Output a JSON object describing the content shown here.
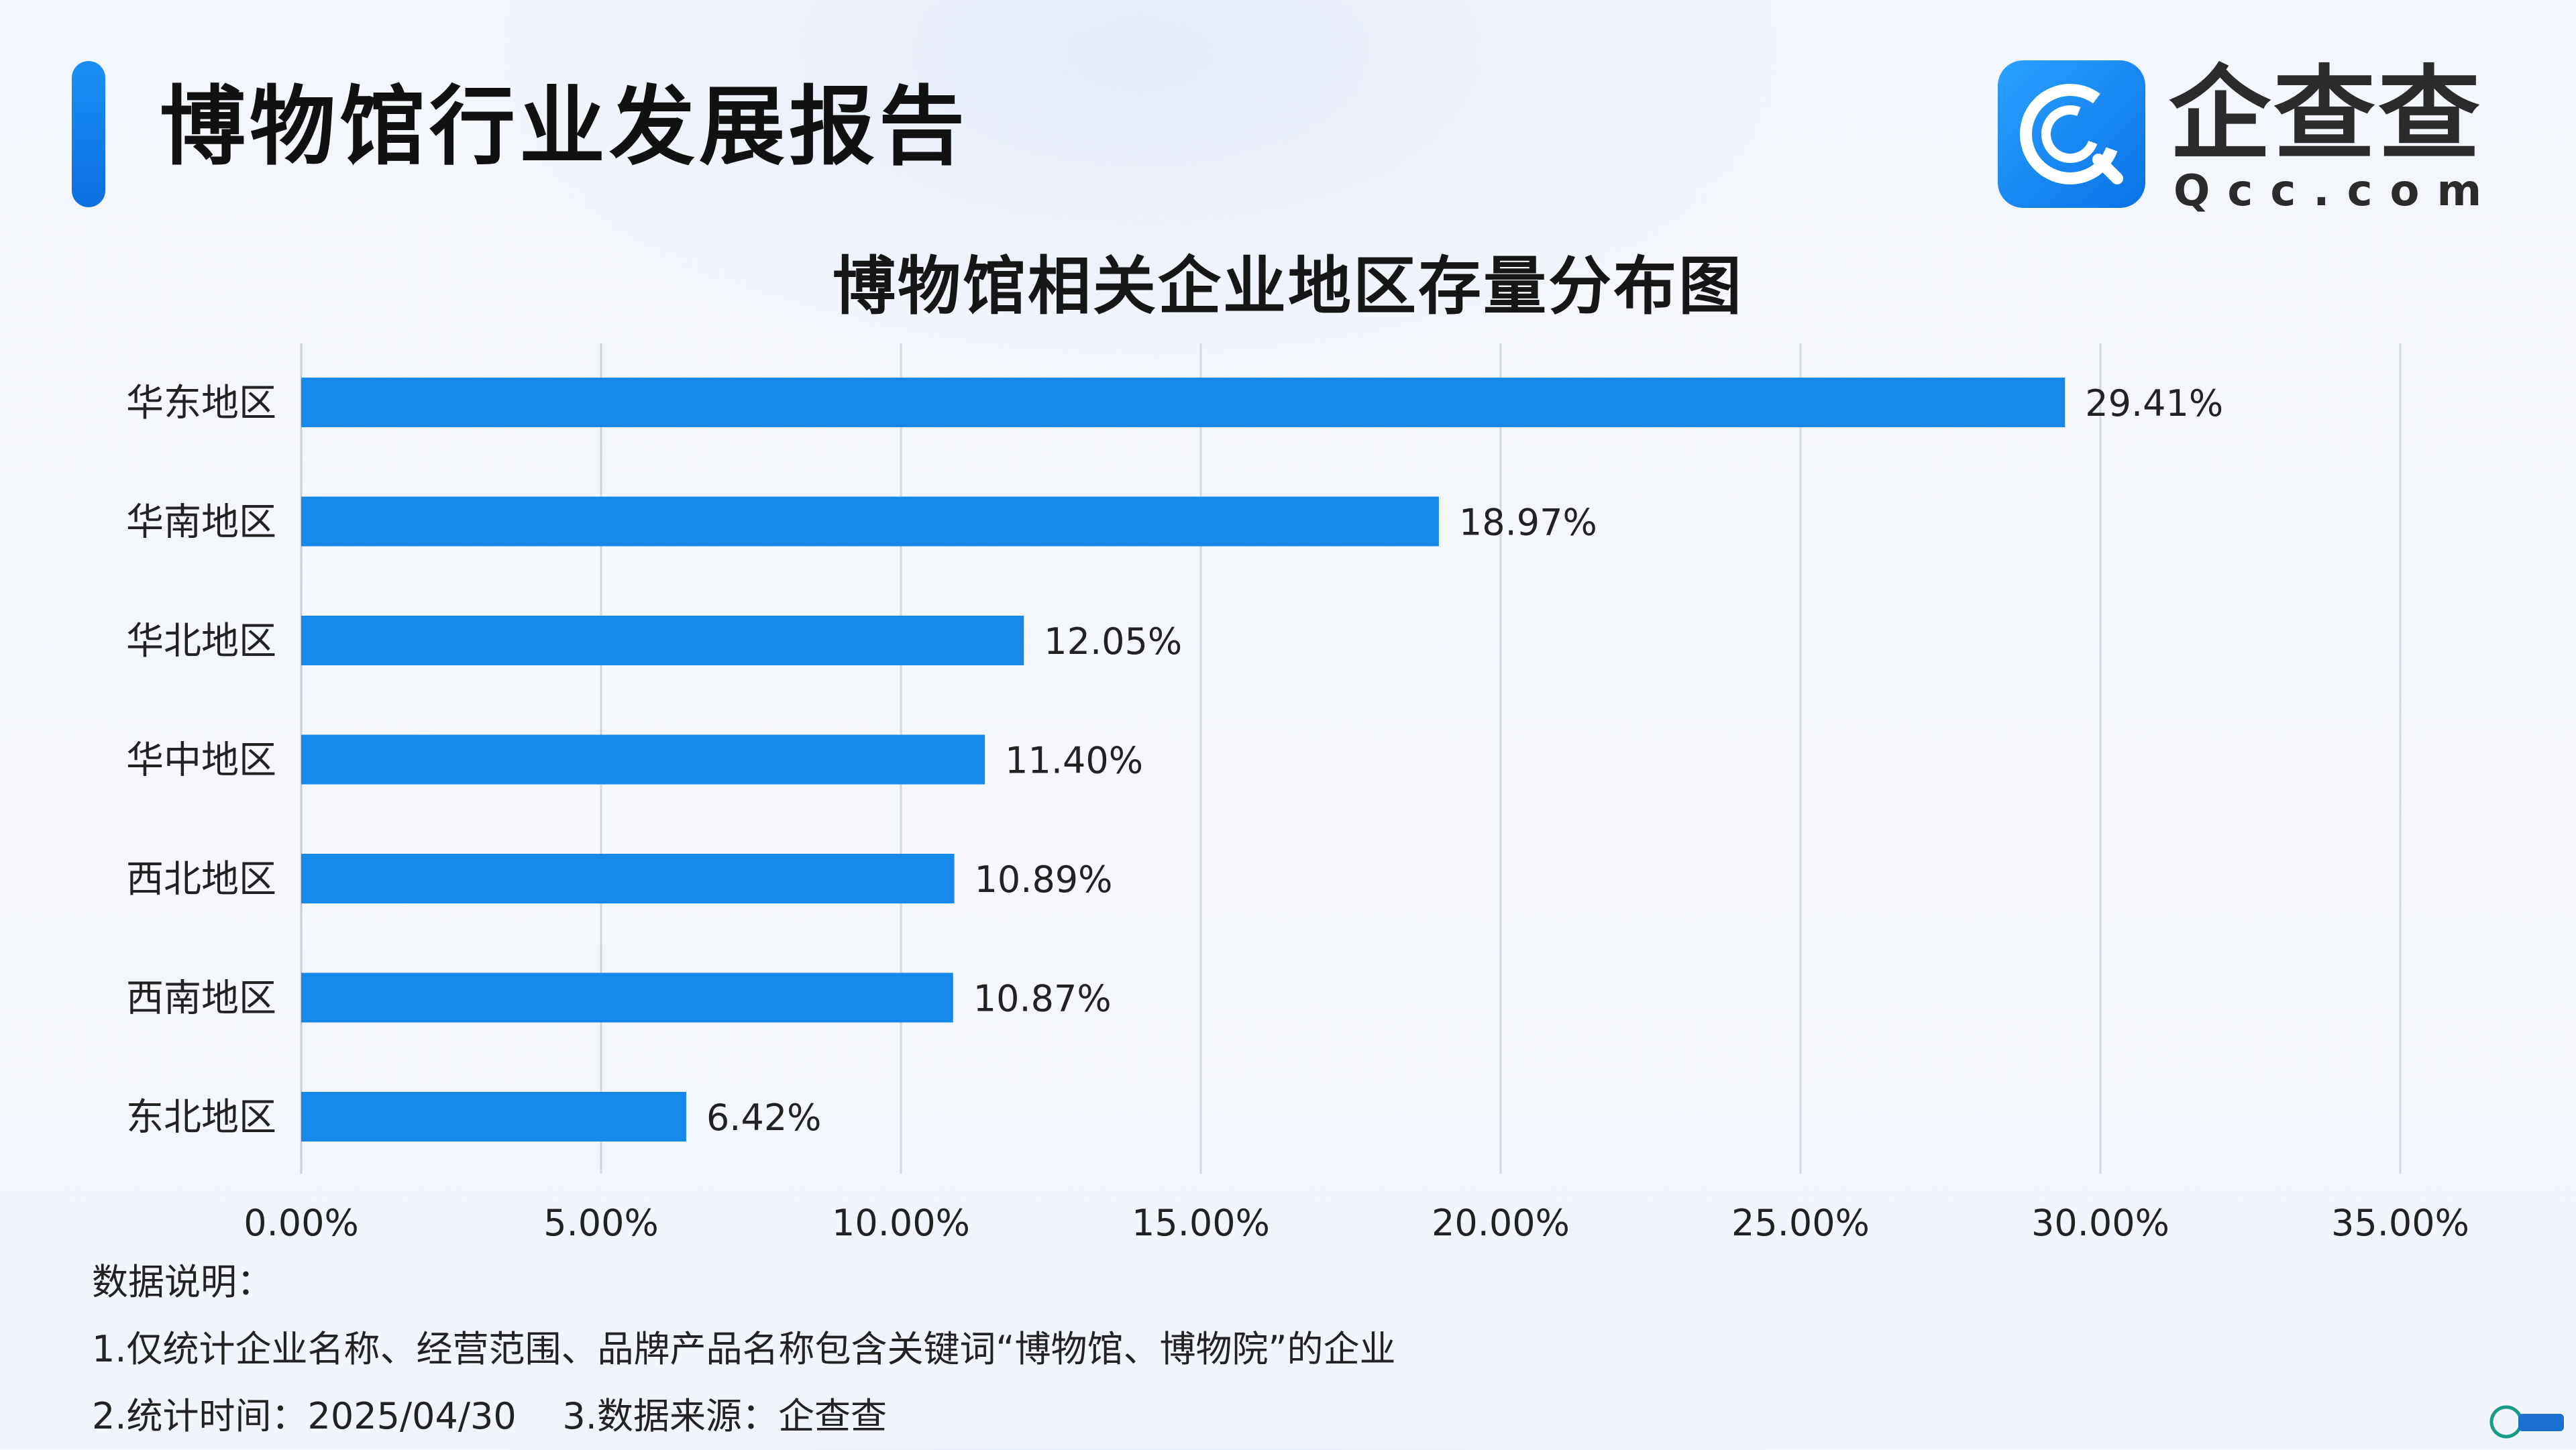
{
  "header": {
    "title": "博物馆行业发展报告",
    "logo_cn": "企查查",
    "logo_en": "Qcc.com"
  },
  "chart_data": {
    "type": "bar",
    "orientation": "horizontal",
    "title": "博物馆相关企业地区存量分布图",
    "categories": [
      "华东地区",
      "华南地区",
      "华北地区",
      "华中地区",
      "西北地区",
      "西南地区",
      "东北地区"
    ],
    "values": [
      29.41,
      18.97,
      12.05,
      11.4,
      10.89,
      10.87,
      6.42
    ],
    "value_labels": [
      "29.41%",
      "18.97%",
      "12.05%",
      "11.40%",
      "10.89%",
      "10.87%",
      "6.42%"
    ],
    "xlim": [
      0,
      35
    ],
    "xticks": [
      0,
      5,
      10,
      15,
      20,
      25,
      30,
      35
    ],
    "xtick_labels": [
      "0.00%",
      "5.00%",
      "10.00%",
      "15.00%",
      "20.00%",
      "25.00%",
      "30.00%",
      "35.00%"
    ],
    "xlabel": "",
    "ylabel": "",
    "grid": "vertical",
    "bar_color": "#1688ea"
  },
  "notes": {
    "heading": "数据说明：",
    "line1": "1.仅统计企业名称、经营范围、品牌产品名称包含关键词“博物馆、博物院”的企业",
    "line2": "2.统计时间：2025/04/30    3.数据来源：企查查"
  },
  "colors": {
    "accent": "#1688ea",
    "brand": "#1a8cf0"
  }
}
